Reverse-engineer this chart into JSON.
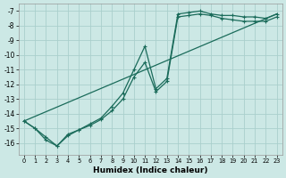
{
  "xlabel": "Humidex (Indice chaleur)",
  "background_color": "#cce8e5",
  "grid_color": "#aacfcc",
  "line_color": "#1a6b5a",
  "xlim": [
    -0.5,
    23.5
  ],
  "ylim": [
    -16.8,
    -6.5
  ],
  "yticks": [
    -7,
    -8,
    -9,
    -10,
    -11,
    -12,
    -13,
    -14,
    -15,
    -16
  ],
  "xticks": [
    0,
    1,
    2,
    3,
    4,
    5,
    6,
    7,
    8,
    9,
    10,
    11,
    12,
    13,
    14,
    15,
    16,
    17,
    18,
    19,
    20,
    21,
    22,
    23
  ],
  "curve1_x": [
    0,
    1,
    2,
    3,
    4,
    5,
    6,
    7,
    8,
    9,
    10,
    11,
    12,
    13,
    14,
    15,
    16,
    17,
    18,
    19,
    20,
    21,
    22,
    23
  ],
  "curve1_y": [
    -14.5,
    -15.0,
    -15.6,
    -16.2,
    -15.4,
    -15.1,
    -14.7,
    -14.3,
    -13.5,
    -12.6,
    -11.0,
    -9.4,
    -12.3,
    -11.6,
    -7.2,
    -7.1,
    -7.0,
    -7.2,
    -7.3,
    -7.3,
    -7.4,
    -7.4,
    -7.5,
    -7.2
  ],
  "curve2_x": [
    0,
    1,
    2,
    3,
    4,
    5,
    6,
    7,
    8,
    9,
    10,
    11,
    12,
    13,
    14,
    15,
    16,
    17,
    18,
    19,
    20,
    21,
    22,
    23
  ],
  "curve2_y": [
    -14.5,
    -15.0,
    -15.8,
    -16.2,
    -15.5,
    -15.1,
    -14.8,
    -14.4,
    -13.8,
    -13.0,
    -11.5,
    -10.5,
    -12.5,
    -11.8,
    -7.4,
    -7.3,
    -7.2,
    -7.3,
    -7.5,
    -7.6,
    -7.7,
    -7.7,
    -7.7,
    -7.4
  ],
  "curve3_x": [
    0,
    23
  ],
  "curve3_y": [
    -14.5,
    -7.2
  ]
}
